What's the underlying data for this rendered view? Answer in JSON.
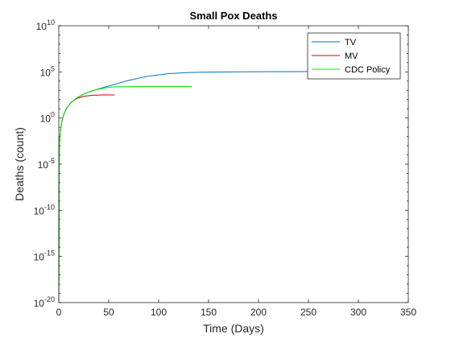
{
  "chart_data": {
    "type": "line",
    "title": "Small Pox Deaths",
    "xlabel": "Time (Days)",
    "ylabel": "Deaths (count)",
    "xlim": [
      0,
      350
    ],
    "ylim": [
      1e-20,
      10000000000.0
    ],
    "yscale": "log",
    "grid": false,
    "legend_position": "top-right",
    "xticks": [
      0,
      50,
      100,
      150,
      200,
      250,
      300,
      350
    ],
    "xtick_labels": [
      "0",
      "50",
      "100",
      "150",
      "200",
      "250",
      "300",
      "350"
    ],
    "yticks": [
      {
        "value": 10000000000.0,
        "base": "10",
        "exp": "10"
      },
      {
        "value": 100000.0,
        "base": "10",
        "exp": "5"
      },
      {
        "value": 1,
        "base": "10",
        "exp": "0"
      },
      {
        "value": 1e-05,
        "base": "10",
        "exp": "-5"
      },
      {
        "value": 1e-10,
        "base": "10",
        "exp": "-10"
      },
      {
        "value": 1e-15,
        "base": "10",
        "exp": "-15"
      },
      {
        "value": 1e-20,
        "base": "10",
        "exp": "-20"
      }
    ],
    "series": [
      {
        "name": "TV",
        "color": "#0072BD",
        "x": [
          0,
          0.5,
          1,
          2,
          3,
          5,
          8,
          12,
          18,
          25,
          35,
          50,
          70,
          90,
          110,
          130,
          150,
          170,
          200,
          250,
          300,
          310
        ],
        "y": [
          1e-20,
          0.0003,
          0.006,
          0.08,
          0.35,
          2.5,
          12,
          45,
          150,
          400,
          1000,
          3000,
          12000,
          35000,
          65000,
          85000,
          95000,
          100000,
          105000,
          107000,
          108000,
          108000
        ]
      },
      {
        "name": "MV",
        "color": "#D40000",
        "x": [
          0,
          0.5,
          1,
          2,
          3,
          5,
          8,
          12,
          18,
          25,
          35,
          45,
          56
        ],
        "y": [
          1e-20,
          0.0003,
          0.006,
          0.08,
          0.35,
          2.5,
          12,
          45,
          130,
          230,
          300,
          320,
          320
        ]
      },
      {
        "name": "CDC Policy",
        "color": "#00E600",
        "x": [
          0,
          0.5,
          1,
          2,
          3,
          5,
          8,
          12,
          18,
          25,
          35,
          50,
          60,
          80,
          100,
          133
        ],
        "y": [
          1e-20,
          0.0003,
          0.006,
          0.08,
          0.35,
          2.5,
          12,
          45,
          150,
          400,
          1000,
          2200,
          2500,
          2600,
          2600,
          2600
        ]
      }
    ]
  }
}
